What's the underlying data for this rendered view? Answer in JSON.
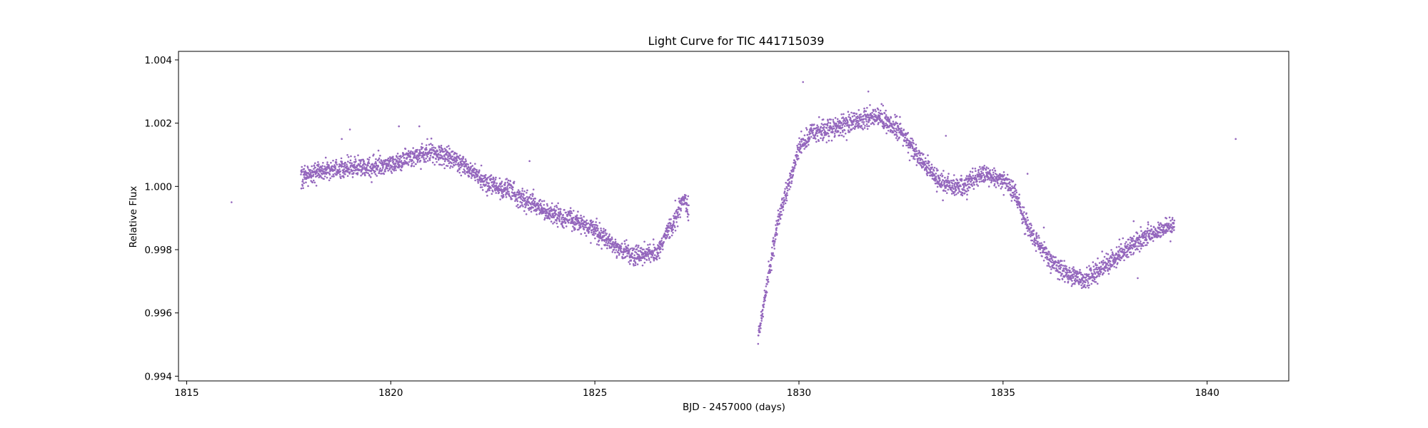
{
  "chart_data": {
    "type": "scatter",
    "title": "Light Curve for TIC 441715039",
    "xlabel": "BJD - 2457000 (days)",
    "ylabel": "Relative Flux",
    "xlim": [
      1814.8,
      1842.0
    ],
    "ylim": [
      0.99385,
      1.00427
    ],
    "xticks": [
      1815,
      1820,
      1825,
      1830,
      1835,
      1840
    ],
    "xtick_labels": [
      "1815",
      "1820",
      "1825",
      "1830",
      "1835",
      "1840"
    ],
    "yticks": [
      0.994,
      0.996,
      0.998,
      1.0,
      1.002,
      1.004
    ],
    "ytick_labels": [
      "0.994",
      "0.996",
      "0.998",
      "1.000",
      "1.002",
      "1.004"
    ],
    "marker_color": "#9467bd",
    "grid": false,
    "series": [
      {
        "segments": [
          {
            "x": [
              1817.8,
              1818.3,
              1819.0,
              1819.5,
              1820.0,
              1820.5,
              1821.0,
              1821.3,
              1821.5,
              1821.8,
              1822.2,
              1823.0,
              1823.5,
              1824.0,
              1824.5,
              1825.0,
              1825.5,
              1826.0,
              1826.5,
              1826.9,
              1827.2,
              1827.3
            ],
            "y": [
              1.0003,
              1.0005,
              1.0006,
              1.0006,
              1.0007,
              1.0009,
              1.0011,
              1.001,
              1.0009,
              1.0007,
              1.0002,
              0.9998,
              0.9994,
              0.9991,
              0.9989,
              0.9986,
              0.9981,
              0.9978,
              0.9979,
              0.9988,
              0.9996,
              0.9992
            ],
            "scatter": 0.00028
          },
          {
            "x": [
              1829.0,
              1829.2,
              1829.5,
              1829.8,
              1830.0,
              1830.3,
              1830.7,
              1831.0,
              1831.5,
              1832.0,
              1832.5,
              1833.0,
              1833.5,
              1834.0,
              1834.5,
              1835.0,
              1835.3,
              1835.5,
              1835.8,
              1836.2,
              1836.6,
              1837.0,
              1837.5,
              1838.0,
              1838.5,
              1839.0,
              1839.2
            ],
            "y": [
              0.9952,
              0.9968,
              0.999,
              1.0003,
              1.0012,
              1.0017,
              1.0018,
              1.0019,
              1.0021,
              1.0022,
              1.0017,
              1.0008,
              1.0001,
              1.0,
              1.0004,
              1.0002,
              0.9998,
              0.999,
              0.9983,
              0.9976,
              0.9972,
              0.997,
              0.9975,
              0.998,
              0.9984,
              0.9987,
              0.9988
            ],
            "scatter": 0.00028
          }
        ],
        "outliers": [
          {
            "x": 1816.1,
            "y": 0.9995
          },
          {
            "x": 1818.8,
            "y": 1.0015
          },
          {
            "x": 1819.0,
            "y": 1.0018
          },
          {
            "x": 1820.2,
            "y": 1.0019
          },
          {
            "x": 1820.7,
            "y": 1.0019
          },
          {
            "x": 1823.4,
            "y": 1.0008
          },
          {
            "x": 1830.1,
            "y": 1.0033
          },
          {
            "x": 1831.7,
            "y": 1.003
          },
          {
            "x": 1833.6,
            "y": 1.0016
          },
          {
            "x": 1835.6,
            "y": 1.0004
          },
          {
            "x": 1836.0,
            "y": 0.9987
          },
          {
            "x": 1838.2,
            "y": 0.9989
          },
          {
            "x": 1838.3,
            "y": 0.9971
          },
          {
            "x": 1840.7,
            "y": 1.0015
          }
        ]
      }
    ]
  }
}
